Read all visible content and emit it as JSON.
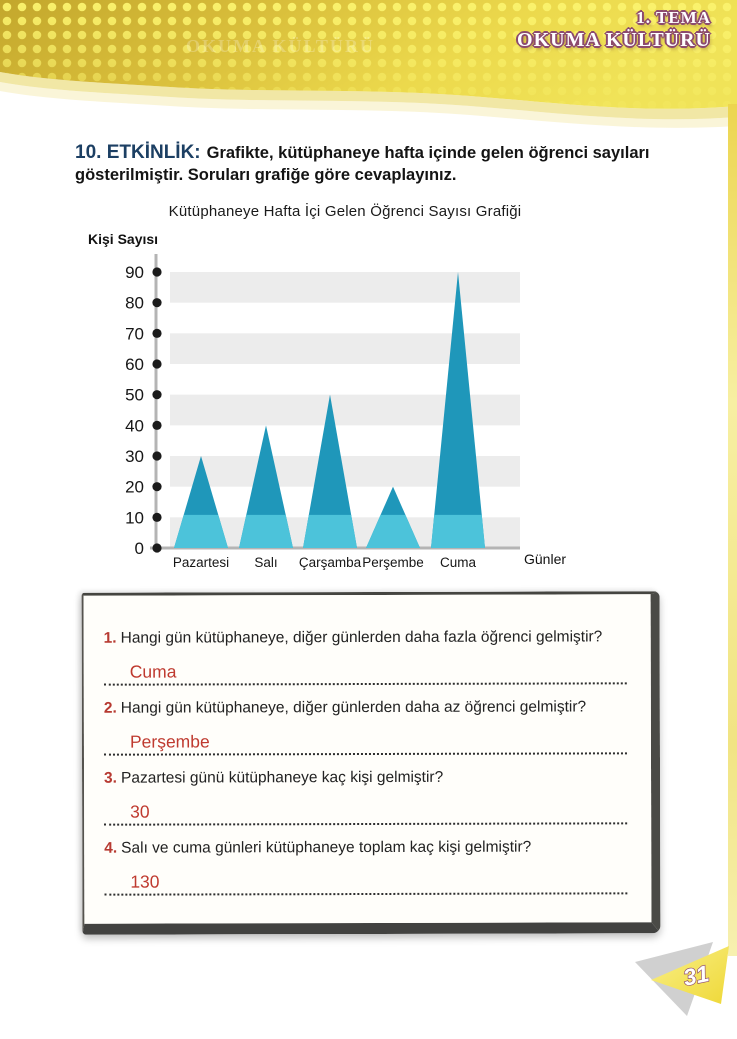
{
  "header": {
    "tema_label": "1. TEMA",
    "unit_title": "OKUMA KÜLTÜRÜ"
  },
  "activity": {
    "label": "10. ETKİNLİK:",
    "description": "Grafikte, kütüphaneye hafta içinde gelen öğrenci sayıları gösterilmiştir. Soruları grafiğe göre cevaplayınız."
  },
  "chart_data": {
    "type": "bar",
    "shape": "triangle-peaks",
    "title": "Kütüphaneye Hafta İçi Gelen Öğrenci Sayısı Grafiği",
    "xlabel": "Günler",
    "ylabel": "Kişi Sayısı",
    "categories": [
      "Pazartesi",
      "Salı",
      "Çarşamba",
      "Perşembe",
      "Cuma"
    ],
    "values": [
      30,
      40,
      50,
      20,
      90
    ],
    "y_ticks": [
      0,
      10,
      20,
      30,
      40,
      50,
      60,
      70,
      80,
      90
    ],
    "ylim": [
      0,
      90
    ],
    "grid": "alternating-horizontal-bands",
    "legend": "none",
    "colors": {
      "peak_dark": "#1f97ba",
      "peak_light": "#4cc3da",
      "band_gray": "#ececec",
      "axis_gray": "#b4b4b4"
    }
  },
  "questions": [
    {
      "number": "1.",
      "text": "Hangi gün kütüphaneye, diğer günlerden daha fazla öğrenci gelmiştir?",
      "answer": "Cuma"
    },
    {
      "number": "2.",
      "text": "Hangi gün kütüphaneye, diğer günlerden daha az öğrenci gelmiştir?",
      "answer": "Perşembe"
    },
    {
      "number": "3.",
      "text": "Pazartesi günü kütüphaneye kaç kişi gelmiştir?",
      "answer": "30"
    },
    {
      "number": "4.",
      "text": "Salı ve cuma günleri kütüphaneye toplam kaç kişi gelmiştir?",
      "answer": "130"
    }
  ],
  "page": {
    "number": "31"
  }
}
